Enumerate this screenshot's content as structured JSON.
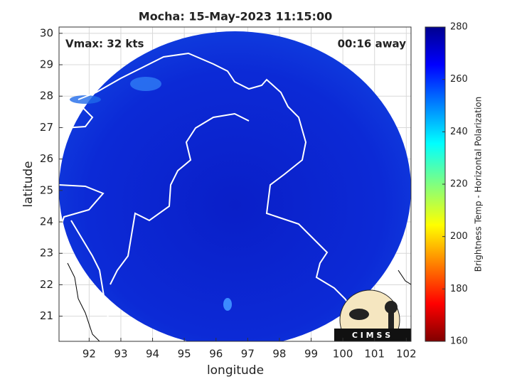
{
  "chart_data": {
    "type": "map",
    "title": "Mocha: 15-May-2023 11:15:00",
    "annotations": [
      "Vmax: 32 kts",
      "00:16 away"
    ],
    "xlabel": "longitude",
    "ylabel": "latitude",
    "xlim": [
      91.05,
      102.15
    ],
    "xticks": [
      92,
      93,
      94,
      95,
      96,
      97,
      98,
      99,
      100,
      101,
      102
    ],
    "ylim": [
      20.2,
      30.2
    ],
    "yticks": [
      21,
      22,
      23,
      24,
      25,
      26,
      27,
      28,
      29,
      30
    ],
    "grid": true,
    "colorbar": {
      "label": "Brightness Temp - Horizontal Polarization",
      "colormap": "jet",
      "lim": [
        160,
        280
      ],
      "ticks": [
        160,
        180,
        200,
        220,
        240,
        260,
        280
      ]
    },
    "logo": "C I M S S"
  }
}
